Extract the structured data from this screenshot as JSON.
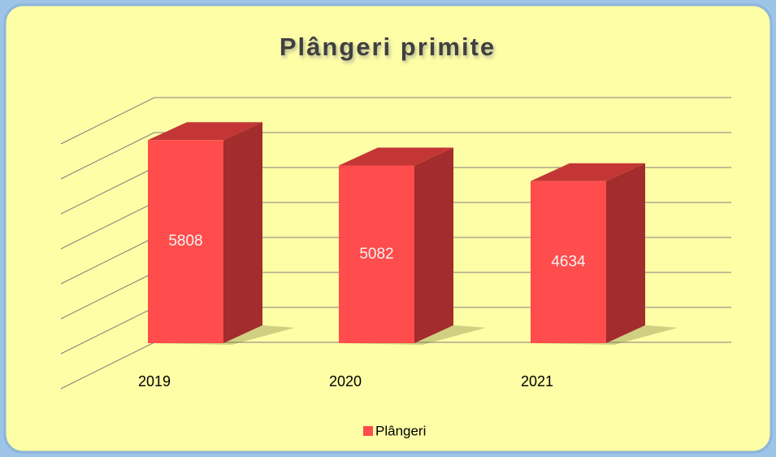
{
  "chart_data": {
    "type": "bar3d",
    "title": "Plângeri primite",
    "categories": [
      "2019",
      "2020",
      "2021"
    ],
    "series": [
      {
        "name": "Plângeri",
        "color": "#ff4c4c",
        "values": [
          5808,
          5082,
          4634
        ]
      }
    ],
    "ylim": [
      0,
      7000
    ],
    "yticks": [
      0,
      1000,
      2000,
      3000,
      4000,
      5000,
      6000,
      7000
    ],
    "grid": true,
    "legend": "bottom"
  }
}
